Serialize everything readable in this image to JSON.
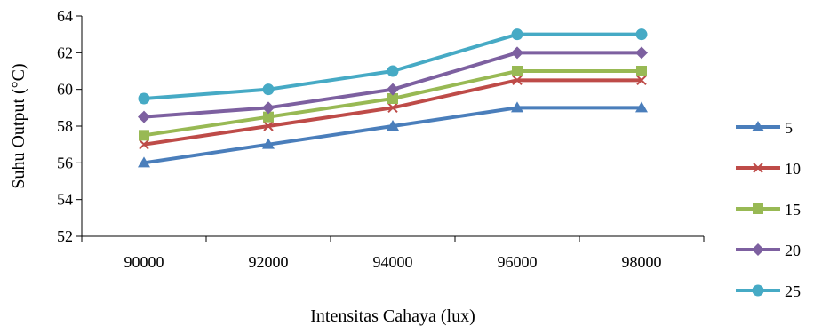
{
  "chart_data": {
    "type": "line",
    "title": "",
    "xlabel": "Intensitas Cahaya (lux)",
    "ylabel": "Suhu Output (°C)",
    "x": [
      90000,
      92000,
      94000,
      96000,
      98000
    ],
    "x_tick_labels": [
      "90000",
      "92000",
      "94000",
      "96000",
      "98000"
    ],
    "xlim": [
      89000,
      99000
    ],
    "ylim": [
      52,
      64
    ],
    "y_ticks": [
      52,
      54,
      56,
      58,
      60,
      62,
      64
    ],
    "y_tick_labels": [
      "52",
      "54",
      "56",
      "58",
      "60",
      "62",
      "64"
    ],
    "grid": false,
    "legend_position": "right",
    "series": [
      {
        "name": "5",
        "values": [
          56,
          57,
          58,
          59,
          59
        ],
        "color": "#4a7ebb",
        "marker": "triangle"
      },
      {
        "name": "10",
        "values": [
          57,
          58,
          59,
          60.5,
          60.5
        ],
        "color": "#be4b48",
        "marker": "x"
      },
      {
        "name": "15",
        "values": [
          57.5,
          58.5,
          59.5,
          61,
          61
        ],
        "color": "#98b954",
        "marker": "square"
      },
      {
        "name": "20",
        "values": [
          58.5,
          59,
          60,
          62,
          62
        ],
        "color": "#7d60a0",
        "marker": "diamond"
      },
      {
        "name": "25",
        "values": [
          59.5,
          60,
          61,
          63,
          63
        ],
        "color": "#46aac5",
        "marker": "circle"
      }
    ]
  }
}
